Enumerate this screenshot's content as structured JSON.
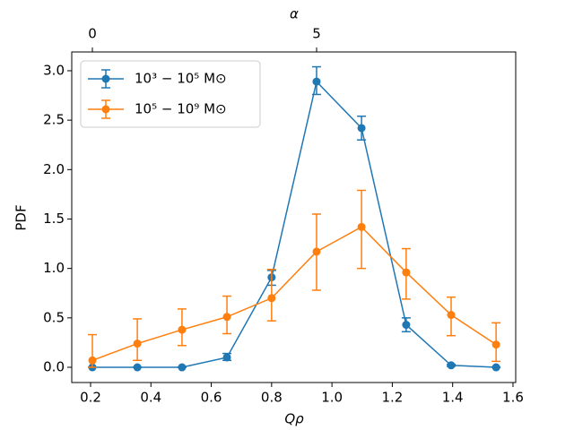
{
  "chart_data": {
    "type": "line",
    "xlabel": "Qρ",
    "ylabel": "PDF",
    "x2label": "α",
    "x": [
      0.206,
      0.355,
      0.503,
      0.652,
      0.8,
      0.949,
      1.098,
      1.246,
      1.395,
      1.544
    ],
    "xlim": [
      0.1376,
      1.609
    ],
    "xticks": [
      0.2,
      0.4,
      0.6,
      0.8,
      {
        "value": 1,
        "label": "1.0"
      },
      1.2,
      1.4,
      1.6
    ],
    "x2lim": [
      -0.46,
      9.44
    ],
    "x2ticks": [
      0,
      5
    ],
    "ylim": [
      -0.154,
      3.19
    ],
    "yticks": [
      {
        "value": 0,
        "label": "0.0"
      },
      0.5,
      {
        "value": 1,
        "label": "1.0"
      },
      1.5,
      {
        "value": 2,
        "label": "2.0"
      },
      2.5,
      {
        "value": 3,
        "label": "3.0"
      }
    ],
    "legend": "upper left",
    "series": [
      {
        "name": "10³ − 10⁵ M⊙",
        "color": "#1f77b4",
        "values": [
          0,
          0,
          0,
          0.1,
          0.91,
          2.89,
          2.42,
          0.43,
          0.02,
          0
        ],
        "errors_low": [
          0,
          0,
          0,
          0.03,
          0.08,
          0.13,
          0.12,
          0.07,
          0.01,
          0
        ],
        "errors_high": [
          0,
          0,
          0,
          0.04,
          0.07,
          0.15,
          0.12,
          0.07,
          0.01,
          0
        ]
      },
      {
        "name": "10⁵ − 10⁹ M⊙",
        "color": "#ff7f0e",
        "values": [
          0.07,
          0.24,
          0.38,
          0.51,
          0.7,
          1.17,
          1.42,
          0.96,
          0.53,
          0.23
        ],
        "errors_low": [
          0.07,
          0.17,
          0.16,
          0.17,
          0.23,
          0.39,
          0.42,
          0.27,
          0.21,
          0.17
        ],
        "errors_high": [
          0.26,
          0.25,
          0.21,
          0.21,
          0.29,
          0.38,
          0.37,
          0.24,
          0.18,
          0.22
        ]
      }
    ]
  }
}
